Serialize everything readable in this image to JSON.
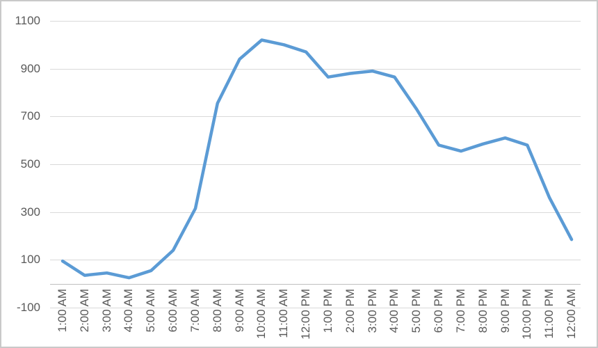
{
  "window": {
    "background": "#FFFFFF",
    "border_color": "#C9C9C9"
  },
  "chart_data": {
    "type": "line",
    "title": "",
    "xlabel": "",
    "ylabel": "",
    "categories": [
      "1:00 AM",
      "2:00 AM",
      "3:00 AM",
      "4:00 AM",
      "5:00 AM",
      "6:00 AM",
      "7:00 AM",
      "8:00 AM",
      "9:00 AM",
      "10:00 AM",
      "11:00 AM",
      "12:00 PM",
      "1:00 PM",
      "2:00 PM",
      "3:00 PM",
      "4:00 PM",
      "5:00 PM",
      "6:00 PM",
      "7:00 PM",
      "8:00 PM",
      "9:00 PM",
      "10:00 PM",
      "11:00 PM",
      "12:00 AM"
    ],
    "values": [
      95,
      35,
      45,
      25,
      55,
      140,
      315,
      755,
      940,
      1020,
      1000,
      970,
      865,
      880,
      890,
      865,
      730,
      580,
      555,
      585,
      610,
      580,
      360,
      185
    ],
    "ylim": [
      -100,
      1100
    ],
    "yticks": [
      1100,
      900,
      700,
      500,
      300,
      100,
      -100
    ],
    "axis_crosses_at": 0,
    "grid": true,
    "legend": false,
    "line_color": "#5B9BD5",
    "gridline_color": "#D9D9D9",
    "axis_line_color": "#BFBFBF",
    "tick_label_color": "#595959"
  }
}
